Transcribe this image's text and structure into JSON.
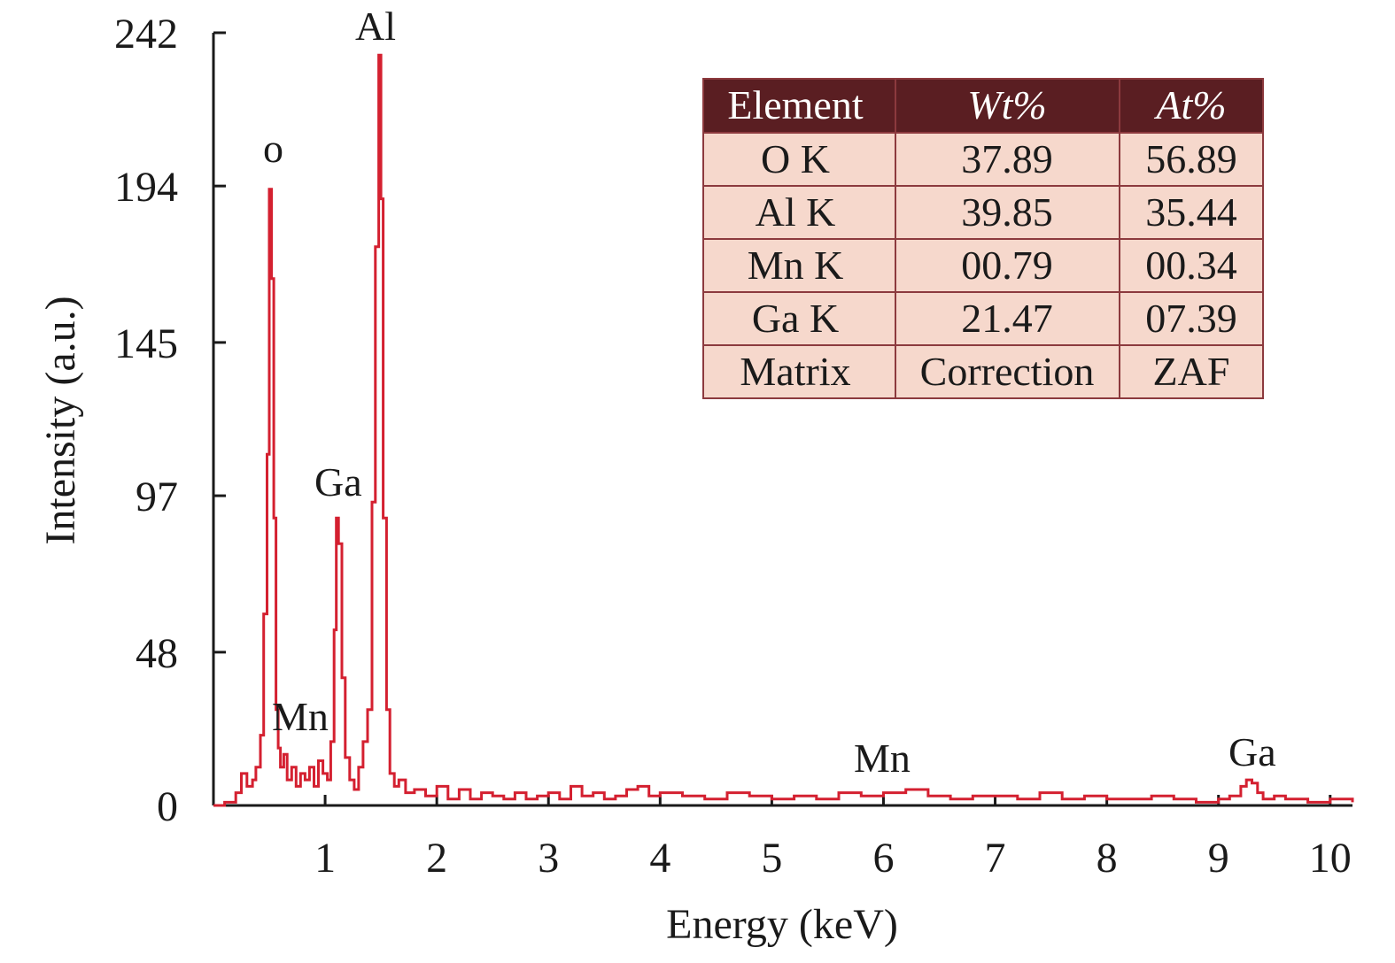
{
  "chart_data": {
    "type": "line",
    "xlabel": "Energy (keV)",
    "ylabel": "Intensity (a.u.)",
    "xlim": [
      0,
      10.2
    ],
    "ylim": [
      0,
      242
    ],
    "x_ticks": [
      1,
      2,
      3,
      4,
      5,
      6,
      7,
      8,
      9,
      10
    ],
    "x_tick_labels": [
      "1",
      "2",
      "3",
      "4",
      "5",
      "6",
      "7",
      "8",
      "9",
      "10"
    ],
    "y_ticks": [
      0,
      48,
      97,
      145,
      194,
      242
    ],
    "y_tick_labels": [
      "0",
      "48",
      "97",
      "145",
      "194",
      "242"
    ],
    "grid": false,
    "line_color": "#d42030",
    "series": [
      {
        "x": [
          0.0,
          0.1,
          0.2,
          0.25,
          0.3,
          0.35,
          0.38,
          0.42,
          0.45,
          0.48,
          0.5,
          0.52,
          0.54,
          0.56,
          0.58,
          0.6,
          0.63,
          0.66,
          0.7,
          0.74,
          0.78,
          0.82,
          0.86,
          0.9,
          0.94,
          0.98,
          1.02,
          1.05,
          1.08,
          1.1,
          1.12,
          1.15,
          1.18,
          1.22,
          1.26,
          1.3,
          1.34,
          1.38,
          1.42,
          1.45,
          1.48,
          1.5,
          1.52,
          1.55,
          1.58,
          1.62,
          1.66,
          1.72,
          1.8,
          1.9,
          2.0,
          2.1,
          2.2,
          2.3,
          2.4,
          2.5,
          2.6,
          2.7,
          2.8,
          2.9,
          3.0,
          3.1,
          3.2,
          3.3,
          3.4,
          3.5,
          3.6,
          3.7,
          3.8,
          3.9,
          4.0,
          4.2,
          4.4,
          4.6,
          4.8,
          5.0,
          5.2,
          5.4,
          5.6,
          5.8,
          6.0,
          6.2,
          6.4,
          6.6,
          6.8,
          7.0,
          7.2,
          7.4,
          7.6,
          7.8,
          8.0,
          8.2,
          8.4,
          8.6,
          8.8,
          9.0,
          9.1,
          9.2,
          9.25,
          9.3,
          9.35,
          9.4,
          9.5,
          9.6,
          9.8,
          10.0,
          10.2
        ],
        "y": [
          0,
          1,
          4,
          10,
          6,
          8,
          12,
          22,
          60,
          110,
          193,
          165,
          90,
          30,
          18,
          12,
          16,
          8,
          12,
          6,
          10,
          8,
          12,
          6,
          14,
          10,
          8,
          20,
          55,
          90,
          82,
          40,
          15,
          8,
          5,
          12,
          20,
          30,
          95,
          175,
          235,
          190,
          90,
          30,
          10,
          6,
          8,
          4,
          5,
          3,
          6,
          2,
          5,
          2,
          4,
          3,
          2,
          4,
          2,
          3,
          4,
          2,
          6,
          3,
          4,
          2,
          3,
          5,
          6,
          3,
          4,
          3,
          2,
          4,
          3,
          2,
          3,
          2,
          4,
          3,
          4,
          5,
          3,
          2,
          3,
          3,
          2,
          4,
          2,
          3,
          2,
          2,
          3,
          2,
          1,
          2,
          3,
          6,
          8,
          7,
          4,
          2,
          3,
          2,
          1,
          2,
          1
        ]
      }
    ],
    "peak_labels": [
      "o",
      "Al",
      "Ga",
      "Mn",
      "Mn",
      "Ga"
    ],
    "table": {
      "headers": [
        "Element",
        "Wt%",
        "At%"
      ],
      "rows": [
        [
          "O K",
          "37.89",
          "56.89"
        ],
        [
          "Al K",
          "39.85",
          "35.44"
        ],
        [
          "Mn K",
          "00.79",
          "00.34"
        ],
        [
          "Ga K",
          "21.47",
          "07.39"
        ],
        [
          "Matrix",
          "Correction",
          "ZAF"
        ]
      ],
      "header_color": "#5a1e22",
      "cell_color": "#f6d8cc",
      "border_color": "#8c3a3e"
    }
  }
}
